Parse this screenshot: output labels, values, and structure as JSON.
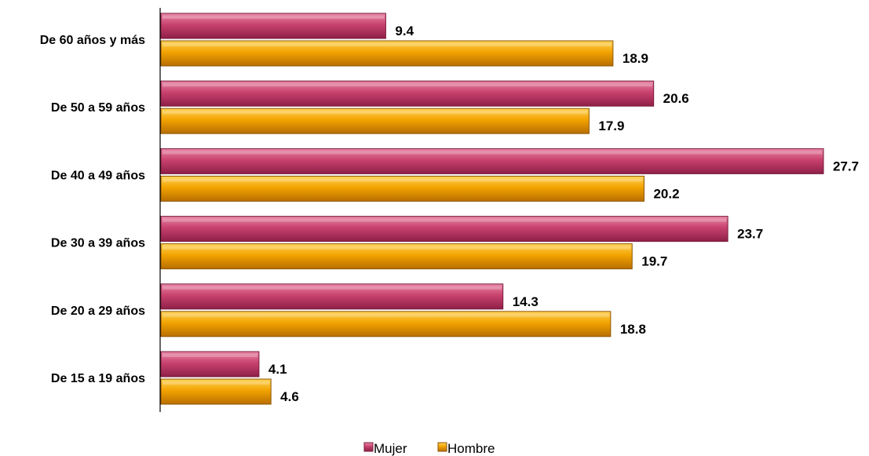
{
  "chart_data": {
    "type": "bar",
    "orientation": "horizontal",
    "categories": [
      "De 60 años y más",
      "De 50 a 59 años",
      "De 40 a 49 años",
      "De 30 a 39 años",
      "De 20 a 29 años",
      "De 15 a 19 años"
    ],
    "series": [
      {
        "name": "Mujer",
        "color": "#c8426e",
        "values": [
          9.4,
          20.6,
          27.7,
          23.7,
          14.3,
          4.1
        ]
      },
      {
        "name": "Hombre",
        "color": "#f0a000",
        "values": [
          18.9,
          17.9,
          20.2,
          19.7,
          18.8,
          4.6
        ]
      }
    ],
    "xlim": [
      0,
      27.7
    ],
    "grid": false,
    "legend_position": "bottom-center"
  }
}
